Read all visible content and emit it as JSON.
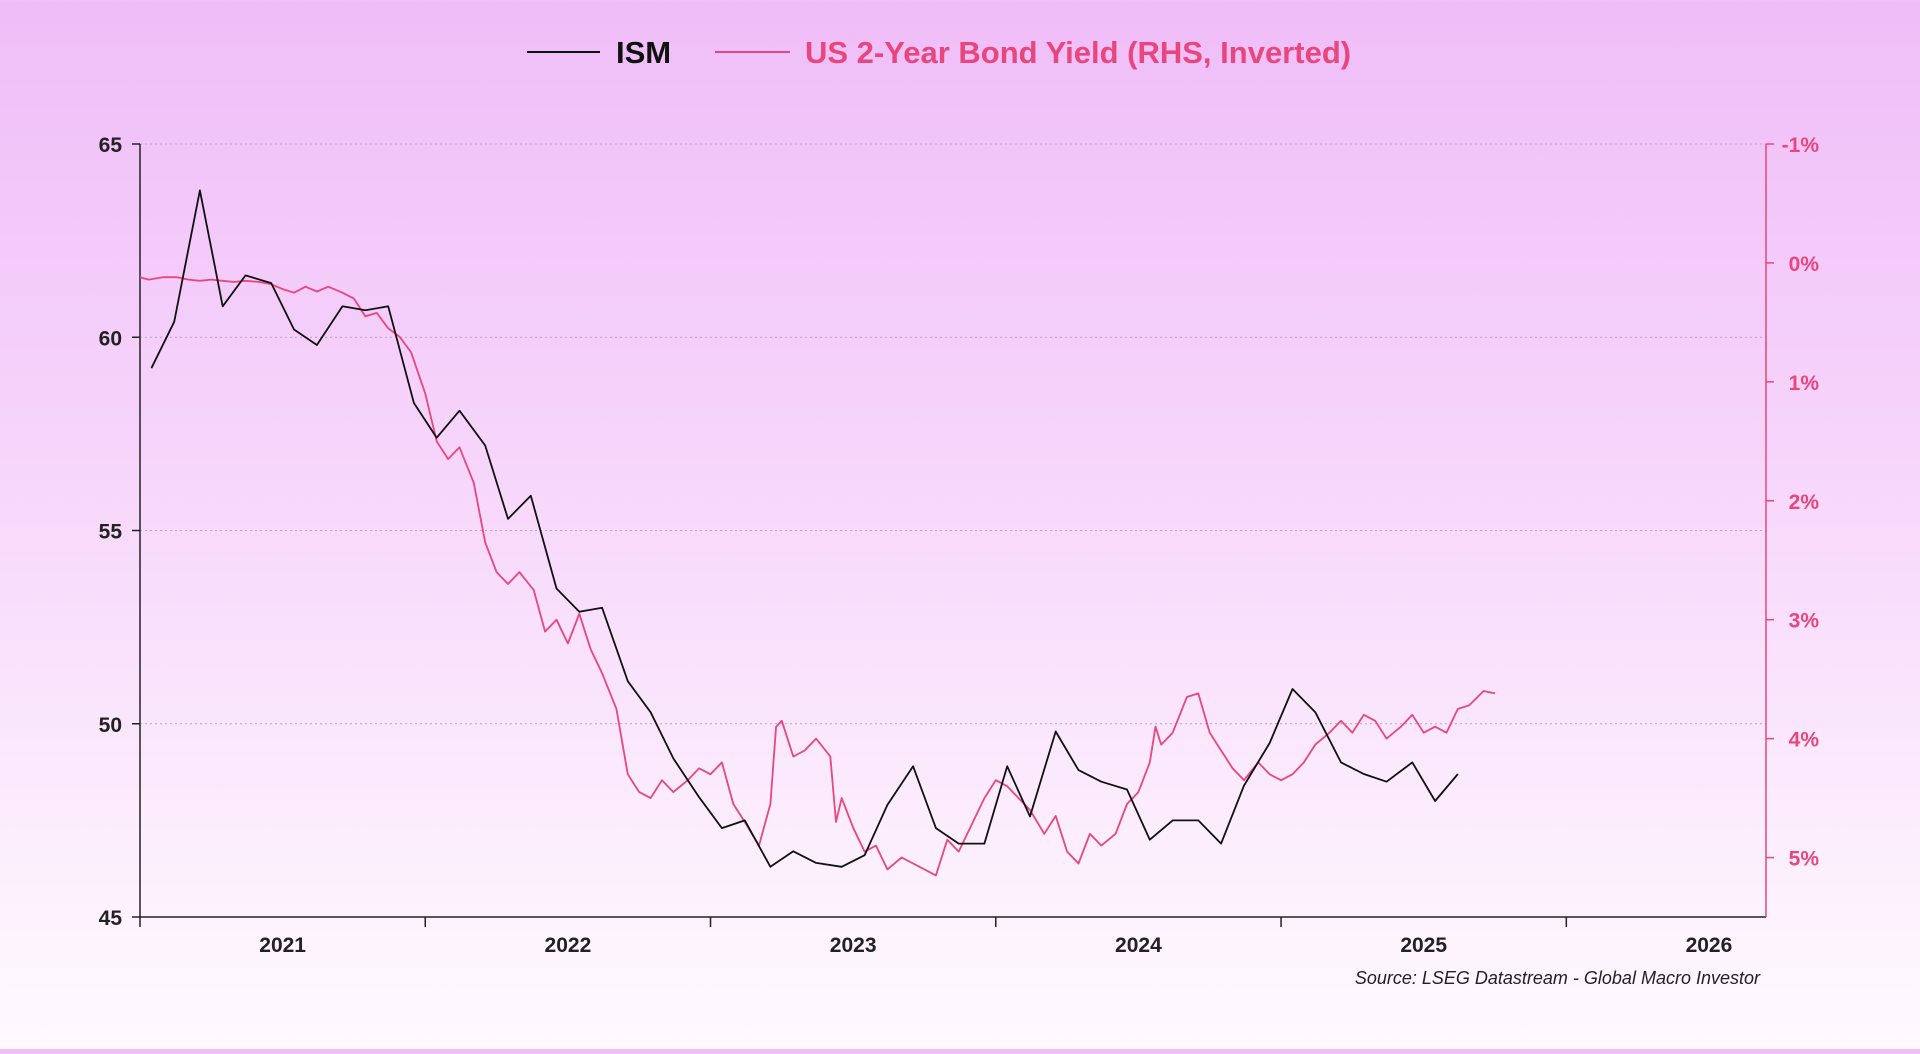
{
  "colors": {
    "ism": "#111111",
    "yield": "#e8467c",
    "axis": "#222222",
    "grid": "#b9a4bd",
    "rhs_axis": "#e8467c"
  },
  "legend": {
    "ism": "ISM",
    "yield": "US 2-Year Bond Yield (RHS, Inverted)"
  },
  "source": "Source: LSEG Datastream - Global Macro Investor",
  "chart_data": {
    "type": "line",
    "title": "",
    "xlabel": "",
    "ylabel": "",
    "xlim": [
      2020.5,
      2026.2
    ],
    "ylim": [
      45,
      65
    ],
    "y2lim": [
      -1,
      5.5
    ],
    "y2_inverted": true,
    "grid": "horizontal-dotted",
    "legend_position": "top-center",
    "left_ticks": [
      {
        "value": 65,
        "label": "65"
      },
      {
        "value": 60,
        "label": "60"
      },
      {
        "value": 55,
        "label": "55"
      },
      {
        "value": 50,
        "label": "50"
      },
      {
        "value": 45,
        "label": "45"
      }
    ],
    "right_ticks": [
      {
        "value": -1,
        "label": "-1%"
      },
      {
        "value": 0,
        "label": "0%"
      },
      {
        "value": 1,
        "label": "1%"
      },
      {
        "value": 2,
        "label": "2%"
      },
      {
        "value": 3,
        "label": "3%"
      },
      {
        "value": 4,
        "label": "4%"
      },
      {
        "value": 5,
        "label": "5%"
      }
    ],
    "x_ticks": [
      2020.5,
      2021.5,
      2022.5,
      2023.5,
      2024.5,
      2025.5
    ],
    "x_labels": [
      {
        "value": 2021.0,
        "label": "2021"
      },
      {
        "value": 2022.0,
        "label": "2022"
      },
      {
        "value": 2023.0,
        "label": "2023"
      },
      {
        "value": 2024.0,
        "label": "2024"
      },
      {
        "value": 2025.0,
        "label": "2025"
      },
      {
        "value": 2026.0,
        "label": "2026"
      }
    ],
    "series": [
      {
        "name": "ISM",
        "axis": "left",
        "points": [
          [
            2020.54,
            59.2
          ],
          [
            2020.62,
            60.4
          ],
          [
            2020.71,
            63.8
          ],
          [
            2020.79,
            60.8
          ],
          [
            2020.87,
            61.6
          ],
          [
            2020.96,
            61.4
          ],
          [
            2021.04,
            60.2
          ],
          [
            2021.12,
            59.8
          ],
          [
            2021.21,
            60.8
          ],
          [
            2021.29,
            60.7
          ],
          [
            2021.37,
            60.8
          ],
          [
            2021.46,
            58.3
          ],
          [
            2021.54,
            57.4
          ],
          [
            2021.62,
            58.1
          ],
          [
            2021.71,
            57.2
          ],
          [
            2021.79,
            55.3
          ],
          [
            2021.87,
            55.9
          ],
          [
            2021.96,
            53.5
          ],
          [
            2022.04,
            52.9
          ],
          [
            2022.12,
            53.0
          ],
          [
            2022.21,
            51.1
          ],
          [
            2022.29,
            50.3
          ],
          [
            2022.37,
            49.1
          ],
          [
            2022.46,
            48.1
          ],
          [
            2022.54,
            47.3
          ],
          [
            2022.62,
            47.5
          ],
          [
            2022.71,
            46.3
          ],
          [
            2022.79,
            46.7
          ],
          [
            2022.87,
            46.4
          ],
          [
            2022.96,
            46.3
          ],
          [
            2023.04,
            46.6
          ],
          [
            2023.12,
            47.9
          ],
          [
            2023.21,
            48.9
          ],
          [
            2023.29,
            47.3
          ],
          [
            2023.37,
            46.9
          ],
          [
            2023.46,
            46.9
          ],
          [
            2023.54,
            48.9
          ],
          [
            2023.62,
            47.6
          ],
          [
            2023.71,
            49.8
          ],
          [
            2023.79,
            48.8
          ],
          [
            2023.87,
            48.5
          ],
          [
            2023.96,
            48.3
          ],
          [
            2024.04,
            47.0
          ],
          [
            2024.12,
            47.5
          ],
          [
            2024.21,
            47.5
          ],
          [
            2024.29,
            46.9
          ],
          [
            2024.37,
            48.4
          ],
          [
            2024.46,
            49.5
          ],
          [
            2024.54,
            50.9
          ],
          [
            2024.62,
            50.3
          ],
          [
            2024.71,
            49.0
          ],
          [
            2024.79,
            48.7
          ],
          [
            2024.87,
            48.5
          ],
          [
            2024.96,
            49.0
          ],
          [
            2025.04,
            48.0
          ],
          [
            2025.12,
            48.7
          ]
        ]
      },
      {
        "name": "US 2-Year Bond Yield (RHS, Inverted)",
        "axis": "right",
        "points": [
          [
            2020.5,
            0.12
          ],
          [
            2020.53,
            0.14
          ],
          [
            2020.58,
            0.12
          ],
          [
            2020.63,
            0.12
          ],
          [
            2020.67,
            0.14
          ],
          [
            2020.71,
            0.15
          ],
          [
            2020.75,
            0.14
          ],
          [
            2020.79,
            0.15
          ],
          [
            2020.83,
            0.16
          ],
          [
            2020.87,
            0.15
          ],
          [
            2020.92,
            0.16
          ],
          [
            2020.96,
            0.18
          ],
          [
            2021.0,
            0.22
          ],
          [
            2021.04,
            0.25
          ],
          [
            2021.08,
            0.2
          ],
          [
            2021.12,
            0.24
          ],
          [
            2021.16,
            0.2
          ],
          [
            2021.21,
            0.25
          ],
          [
            2021.25,
            0.3
          ],
          [
            2021.29,
            0.45
          ],
          [
            2021.33,
            0.42
          ],
          [
            2021.37,
            0.55
          ],
          [
            2021.41,
            0.62
          ],
          [
            2021.45,
            0.75
          ],
          [
            2021.5,
            1.1
          ],
          [
            2021.54,
            1.5
          ],
          [
            2021.58,
            1.65
          ],
          [
            2021.62,
            1.55
          ],
          [
            2021.67,
            1.85
          ],
          [
            2021.71,
            2.35
          ],
          [
            2021.75,
            2.6
          ],
          [
            2021.79,
            2.7
          ],
          [
            2021.83,
            2.6
          ],
          [
            2021.88,
            2.75
          ],
          [
            2021.92,
            3.1
          ],
          [
            2021.96,
            3.0
          ],
          [
            2022.0,
            3.2
          ],
          [
            2022.04,
            2.95
          ],
          [
            2022.08,
            3.25
          ],
          [
            2022.12,
            3.45
          ],
          [
            2022.17,
            3.75
          ],
          [
            2022.21,
            4.3
          ],
          [
            2022.25,
            4.45
          ],
          [
            2022.29,
            4.5
          ],
          [
            2022.33,
            4.35
          ],
          [
            2022.37,
            4.45
          ],
          [
            2022.42,
            4.35
          ],
          [
            2022.46,
            4.25
          ],
          [
            2022.5,
            4.3
          ],
          [
            2022.54,
            4.2
          ],
          [
            2022.58,
            4.55
          ],
          [
            2022.62,
            4.7
          ],
          [
            2022.67,
            4.9
          ],
          [
            2022.71,
            4.55
          ],
          [
            2022.73,
            3.9
          ],
          [
            2022.75,
            3.85
          ],
          [
            2022.79,
            4.15
          ],
          [
            2022.83,
            4.1
          ],
          [
            2022.87,
            4.0
          ],
          [
            2022.92,
            4.15
          ],
          [
            2022.94,
            4.7
          ],
          [
            2022.96,
            4.5
          ],
          [
            2023.0,
            4.75
          ],
          [
            2023.04,
            4.95
          ],
          [
            2023.08,
            4.9
          ],
          [
            2023.12,
            5.1
          ],
          [
            2023.17,
            5.0
          ],
          [
            2023.21,
            5.05
          ],
          [
            2023.25,
            5.1
          ],
          [
            2023.29,
            5.15
          ],
          [
            2023.33,
            4.85
          ],
          [
            2023.37,
            4.95
          ],
          [
            2023.42,
            4.7
          ],
          [
            2023.46,
            4.5
          ],
          [
            2023.5,
            4.35
          ],
          [
            2023.54,
            4.4
          ],
          [
            2023.58,
            4.5
          ],
          [
            2023.62,
            4.6
          ],
          [
            2023.67,
            4.8
          ],
          [
            2023.71,
            4.65
          ],
          [
            2023.75,
            4.95
          ],
          [
            2023.79,
            5.05
          ],
          [
            2023.83,
            4.8
          ],
          [
            2023.87,
            4.9
          ],
          [
            2023.92,
            4.8
          ],
          [
            2023.96,
            4.55
          ],
          [
            2024.0,
            4.45
          ],
          [
            2024.04,
            4.2
          ],
          [
            2024.06,
            3.9
          ],
          [
            2024.08,
            4.05
          ],
          [
            2024.12,
            3.95
          ],
          [
            2024.17,
            3.65
          ],
          [
            2024.21,
            3.62
          ],
          [
            2024.25,
            3.95
          ],
          [
            2024.29,
            4.1
          ],
          [
            2024.33,
            4.25
          ],
          [
            2024.37,
            4.35
          ],
          [
            2024.42,
            4.2
          ],
          [
            2024.46,
            4.3
          ],
          [
            2024.5,
            4.35
          ],
          [
            2024.54,
            4.3
          ],
          [
            2024.58,
            4.2
          ],
          [
            2024.62,
            4.05
          ],
          [
            2024.67,
            3.95
          ],
          [
            2024.71,
            3.85
          ],
          [
            2024.75,
            3.95
          ],
          [
            2024.79,
            3.8
          ],
          [
            2024.83,
            3.85
          ],
          [
            2024.87,
            4.0
          ],
          [
            2024.92,
            3.9
          ],
          [
            2024.96,
            3.8
          ],
          [
            2025.0,
            3.95
          ],
          [
            2025.04,
            3.9
          ],
          [
            2025.08,
            3.95
          ],
          [
            2025.12,
            3.75
          ],
          [
            2025.16,
            3.72
          ],
          [
            2025.21,
            3.6
          ],
          [
            2025.25,
            3.62
          ]
        ]
      }
    ]
  }
}
